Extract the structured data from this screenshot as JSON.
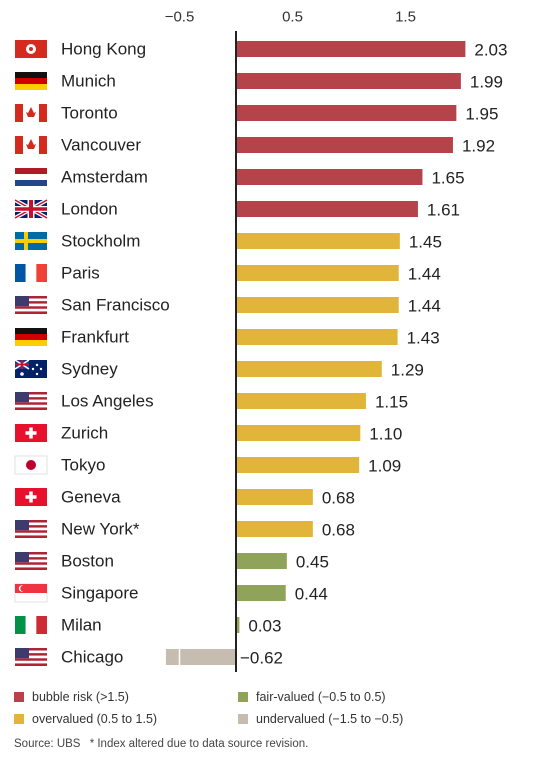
{
  "chart_data": {
    "type": "bar",
    "orientation": "horizontal",
    "x_ticks": [
      "−0.5",
      "0.5",
      "1.5"
    ],
    "xlim": [
      -1.2,
      2.35
    ],
    "categories": [
      "Hong Kong",
      "Munich",
      "Toronto",
      "Vancouver",
      "Amsterdam",
      "London",
      "Stockholm",
      "Paris",
      "San Francisco",
      "Frankfurt",
      "Sydney",
      "Los Angeles",
      "Zurich",
      "Tokyo",
      "Geneva",
      "New York*",
      "Boston",
      "Singapore",
      "Milan",
      "Chicago"
    ],
    "flags": [
      "hong-kong-flag",
      "germany-flag",
      "canada-flag",
      "canada-flag",
      "netherlands-flag",
      "uk-flag",
      "sweden-flag",
      "france-flag",
      "usa-flag",
      "germany-flag",
      "australia-flag",
      "usa-flag",
      "switzerland-flag",
      "japan-flag",
      "switzerland-flag",
      "usa-flag",
      "usa-flag",
      "singapore-flag",
      "italy-flag",
      "usa-flag"
    ],
    "values": [
      2.03,
      1.99,
      1.95,
      1.92,
      1.65,
      1.61,
      1.45,
      1.44,
      1.44,
      1.43,
      1.29,
      1.15,
      1.1,
      1.09,
      0.68,
      0.68,
      0.45,
      0.44,
      0.03,
      -0.62
    ],
    "value_labels": [
      "2.03",
      "1.99",
      "1.95",
      "1.92",
      "1.65",
      "1.61",
      "1.45",
      "1.44",
      "1.44",
      "1.43",
      "1.29",
      "1.15",
      "1.10",
      "1.09",
      "0.68",
      "0.68",
      "0.45",
      "0.44",
      "0.03",
      "−0.62"
    ],
    "categories_risk": [
      "bubble",
      "bubble",
      "bubble",
      "bubble",
      "bubble",
      "bubble",
      "overvalued",
      "overvalued",
      "overvalued",
      "overvalued",
      "overvalued",
      "overvalued",
      "overvalued",
      "overvalued",
      "overvalued",
      "overvalued",
      "fair",
      "fair",
      "fair",
      "undervalued"
    ],
    "colors": {
      "bubble": "#b5434a",
      "overvalued": "#e0b53a",
      "fair": "#8fa35b",
      "undervalued": "#c7bcb0"
    }
  },
  "legend": [
    {
      "key": "bubble",
      "label": "bubble risk (>1.5)"
    },
    {
      "key": "fair",
      "label": "fair-valued (−0.5 to 0.5)"
    },
    {
      "key": "overvalued",
      "label": "overvalued (0.5 to 1.5)"
    },
    {
      "key": "undervalued",
      "label": "undervalued (−1.5 to −0.5)"
    }
  ],
  "source": {
    "text": "Source: UBS",
    "note": "* Index altered due to data source revision."
  }
}
